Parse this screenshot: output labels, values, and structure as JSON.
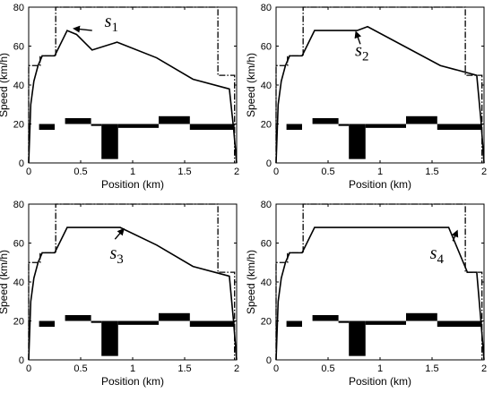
{
  "chart_data": [
    {
      "type": "line",
      "xlabel": "Position (km)",
      "ylabel": "Speed (km/h)",
      "xlim": [
        0,
        2
      ],
      "ylim": [
        0,
        80
      ],
      "xticks": [
        0,
        0.5,
        1,
        1.5,
        2
      ],
      "xtick_labels": [
        "0",
        "0.5",
        "1",
        "1.5",
        "2"
      ],
      "yticks": [
        0,
        20,
        40,
        60,
        80
      ],
      "ytick_labels": [
        "0",
        "20",
        "40",
        "60",
        "80"
      ],
      "grid": false,
      "speed_limit": {
        "x": [
          0,
          0,
          0.11,
          0.11,
          0.26,
          0.26,
          1.82,
          1.82,
          1.98,
          1.98
        ],
        "y": [
          0,
          50,
          50,
          55,
          55,
          80,
          80,
          45,
          45,
          0
        ]
      },
      "gradient_profile": [
        {
          "x_start": 0.1,
          "x_end": 0.25,
          "y_top": 20,
          "y_bottom": 17
        },
        {
          "x_start": 0.35,
          "x_end": 0.6,
          "y_top": 23,
          "y_bottom": 20
        },
        {
          "x_start": 0.6,
          "x_end": 0.7,
          "y_top": 20,
          "y_bottom": 19
        },
        {
          "x_start": 0.7,
          "x_end": 0.86,
          "y_top": 20,
          "y_bottom": 2
        },
        {
          "x_start": 0.86,
          "x_end": 1.25,
          "y_top": 20,
          "y_bottom": 18
        },
        {
          "x_start": 1.25,
          "x_end": 1.55,
          "y_top": 24,
          "y_bottom": 20
        },
        {
          "x_start": 1.55,
          "x_end": 1.98,
          "y_top": 20,
          "y_bottom": 17
        }
      ],
      "speed_curve": {
        "x": [
          0,
          0.02,
          0.05,
          0.09,
          0.13,
          0.25,
          0.37,
          0.46,
          0.61,
          0.85,
          1.23,
          1.58,
          1.93,
          1.97,
          2.0
        ],
        "y": [
          0,
          30,
          42,
          50,
          55,
          55,
          68,
          66,
          58,
          62,
          54,
          43,
          38,
          18,
          0
        ]
      },
      "annotation": {
        "text": "s",
        "subscript": "1",
        "label_x": 0.73,
        "label_y": 70,
        "arrow_from_x": 0.61,
        "arrow_from_y": 68,
        "arrow_to_x": 0.44,
        "arrow_to_y": 69
      }
    },
    {
      "type": "line",
      "xlabel": "Position (km)",
      "ylabel": "Speed (km/h)",
      "xlim": [
        0,
        2
      ],
      "ylim": [
        0,
        80
      ],
      "xticks": [
        0,
        0.5,
        1,
        1.5,
        2
      ],
      "xtick_labels": [
        "0",
        "0.5",
        "1",
        "1.5",
        "2"
      ],
      "yticks": [
        0,
        20,
        40,
        60,
        80
      ],
      "ytick_labels": [
        "0",
        "20",
        "40",
        "60",
        "80"
      ],
      "grid": false,
      "speed_limit": {
        "x": [
          0,
          0,
          0.11,
          0.11,
          0.26,
          0.26,
          1.82,
          1.82,
          1.98,
          1.98
        ],
        "y": [
          0,
          50,
          50,
          55,
          55,
          80,
          80,
          45,
          45,
          0
        ]
      },
      "gradient_profile": [
        {
          "x_start": 0.1,
          "x_end": 0.25,
          "y_top": 20,
          "y_bottom": 17
        },
        {
          "x_start": 0.35,
          "x_end": 0.6,
          "y_top": 23,
          "y_bottom": 20
        },
        {
          "x_start": 0.6,
          "x_end": 0.7,
          "y_top": 20,
          "y_bottom": 19
        },
        {
          "x_start": 0.7,
          "x_end": 0.86,
          "y_top": 20,
          "y_bottom": 2
        },
        {
          "x_start": 0.86,
          "x_end": 1.25,
          "y_top": 20,
          "y_bottom": 18
        },
        {
          "x_start": 1.25,
          "x_end": 1.55,
          "y_top": 24,
          "y_bottom": 20
        },
        {
          "x_start": 1.55,
          "x_end": 1.98,
          "y_top": 20,
          "y_bottom": 17
        }
      ],
      "speed_curve": {
        "x": [
          0,
          0.02,
          0.05,
          0.09,
          0.13,
          0.25,
          0.37,
          0.62,
          0.78,
          0.88,
          1.23,
          1.58,
          1.93,
          1.97,
          2.0
        ],
        "y": [
          0,
          30,
          42,
          50,
          55,
          55,
          68,
          68,
          68,
          70,
          60,
          50,
          45,
          22,
          0
        ]
      },
      "annotation": {
        "text": "s",
        "subscript": "2",
        "label_x": 0.76,
        "label_y": 55,
        "arrow_from_x": 0.81,
        "arrow_from_y": 61,
        "arrow_to_x": 0.77,
        "arrow_to_y": 67
      }
    },
    {
      "type": "line",
      "xlabel": "Position (km)",
      "ylabel": "Speed (km/h)",
      "xlim": [
        0,
        2
      ],
      "ylim": [
        0,
        80
      ],
      "xticks": [
        0,
        0.5,
        1,
        1.5,
        2
      ],
      "xtick_labels": [
        "0",
        "0.5",
        "1",
        "1.5",
        "2"
      ],
      "yticks": [
        0,
        20,
        40,
        60,
        80
      ],
      "ytick_labels": [
        "0",
        "20",
        "40",
        "60",
        "80"
      ],
      "grid": false,
      "speed_limit": {
        "x": [
          0,
          0,
          0.11,
          0.11,
          0.26,
          0.26,
          1.82,
          1.82,
          1.98,
          1.98
        ],
        "y": [
          0,
          50,
          50,
          55,
          55,
          80,
          80,
          45,
          45,
          0
        ]
      },
      "gradient_profile": [
        {
          "x_start": 0.1,
          "x_end": 0.25,
          "y_top": 20,
          "y_bottom": 17
        },
        {
          "x_start": 0.35,
          "x_end": 0.6,
          "y_top": 23,
          "y_bottom": 20
        },
        {
          "x_start": 0.6,
          "x_end": 0.7,
          "y_top": 20,
          "y_bottom": 19
        },
        {
          "x_start": 0.7,
          "x_end": 0.86,
          "y_top": 20,
          "y_bottom": 2
        },
        {
          "x_start": 0.86,
          "x_end": 1.25,
          "y_top": 20,
          "y_bottom": 18
        },
        {
          "x_start": 1.25,
          "x_end": 1.55,
          "y_top": 24,
          "y_bottom": 20
        },
        {
          "x_start": 1.55,
          "x_end": 1.98,
          "y_top": 20,
          "y_bottom": 17
        }
      ],
      "speed_curve": {
        "x": [
          0,
          0.02,
          0.05,
          0.09,
          0.13,
          0.25,
          0.37,
          0.62,
          0.88,
          1.23,
          1.58,
          1.93,
          1.97,
          2.0
        ],
        "y": [
          0,
          30,
          42,
          50,
          55,
          55,
          68,
          68,
          68,
          59,
          48,
          43,
          20,
          0
        ]
      },
      "annotation": {
        "text": "s",
        "subscript": "3",
        "label_x": 0.78,
        "label_y": 52,
        "arrow_from_x": 0.83,
        "arrow_from_y": 62,
        "arrow_to_x": 0.91,
        "arrow_to_y": 67
      }
    },
    {
      "type": "line",
      "xlabel": "Position (km)",
      "ylabel": "Speed (km/h)",
      "xlim": [
        0,
        2
      ],
      "ylim": [
        0,
        80
      ],
      "xticks": [
        0,
        0.5,
        1,
        1.5,
        2
      ],
      "xtick_labels": [
        "0",
        "0.5",
        "1",
        "1.5",
        "2"
      ],
      "yticks": [
        0,
        20,
        40,
        60,
        80
      ],
      "ytick_labels": [
        "0",
        "20",
        "40",
        "60",
        "80"
      ],
      "grid": false,
      "speed_limit": {
        "x": [
          0,
          0,
          0.11,
          0.11,
          0.26,
          0.26,
          1.82,
          1.82,
          1.98,
          1.98
        ],
        "y": [
          0,
          50,
          50,
          55,
          55,
          80,
          80,
          45,
          45,
          0
        ]
      },
      "gradient_profile": [
        {
          "x_start": 0.1,
          "x_end": 0.25,
          "y_top": 20,
          "y_bottom": 17
        },
        {
          "x_start": 0.35,
          "x_end": 0.6,
          "y_top": 23,
          "y_bottom": 20
        },
        {
          "x_start": 0.6,
          "x_end": 0.7,
          "y_top": 20,
          "y_bottom": 19
        },
        {
          "x_start": 0.7,
          "x_end": 0.86,
          "y_top": 20,
          "y_bottom": 2
        },
        {
          "x_start": 0.86,
          "x_end": 1.25,
          "y_top": 20,
          "y_bottom": 18
        },
        {
          "x_start": 1.25,
          "x_end": 1.55,
          "y_top": 24,
          "y_bottom": 20
        },
        {
          "x_start": 1.55,
          "x_end": 1.98,
          "y_top": 20,
          "y_bottom": 17
        }
      ],
      "speed_curve": {
        "x": [
          0,
          0.02,
          0.05,
          0.09,
          0.13,
          0.25,
          0.37,
          1.66,
          1.84,
          1.93,
          1.97,
          2.0
        ],
        "y": [
          0,
          30,
          42,
          50,
          55,
          55,
          68,
          68,
          45,
          45,
          20,
          0
        ]
      },
      "annotation": {
        "text": "s",
        "subscript": "4",
        "label_x": 1.48,
        "label_y": 52,
        "arrow_from_x": 1.7,
        "arrow_from_y": 61,
        "arrow_to_x": 1.74,
        "arrow_to_y": 66
      }
    }
  ]
}
